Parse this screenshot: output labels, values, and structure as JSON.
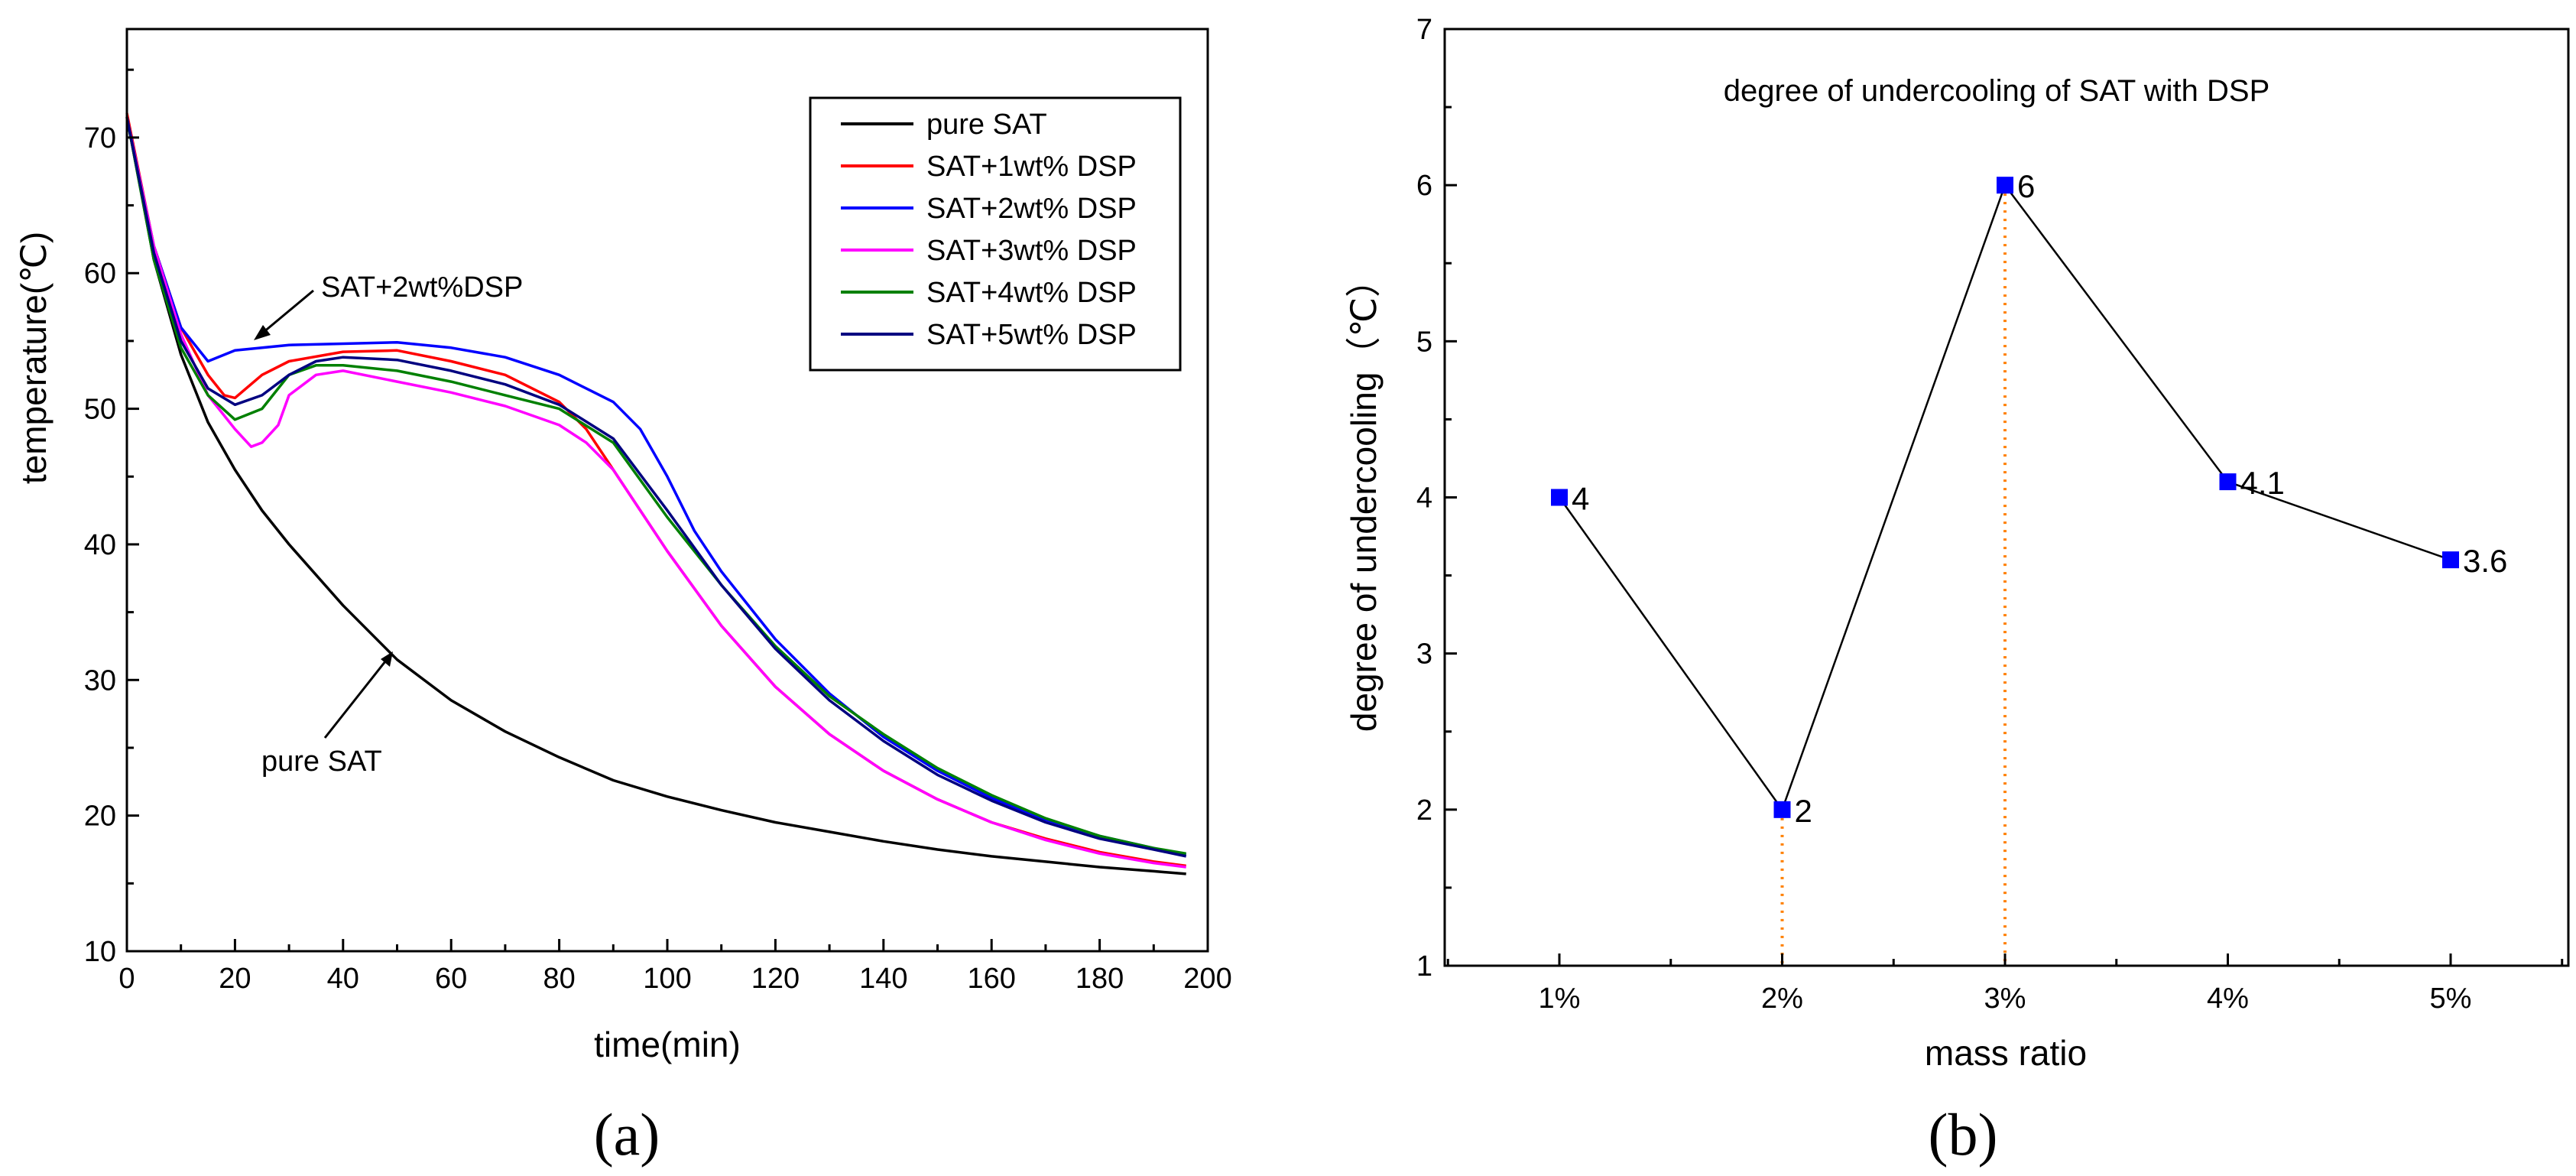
{
  "chart_data": [
    {
      "type": "line",
      "caption": "(a)",
      "xlabel": "time(min)",
      "ylabel": "temperature(℃)",
      "xlim": [
        0,
        200
      ],
      "ylim": [
        10,
        78
      ],
      "xticks": [
        0,
        20,
        40,
        60,
        80,
        100,
        120,
        140,
        160,
        180,
        200
      ],
      "yticks": [
        10,
        20,
        30,
        40,
        50,
        60,
        70
      ],
      "legend_position": "top-right",
      "series": [
        {
          "name": "pure SAT",
          "color": "#000000",
          "x": [
            0,
            5,
            10,
            15,
            20,
            25,
            30,
            40,
            50,
            60,
            70,
            80,
            90,
            100,
            110,
            120,
            130,
            140,
            150,
            160,
            170,
            180,
            190,
            196
          ],
          "y": [
            71.5,
            61,
            54,
            49,
            45.5,
            42.5,
            40,
            35.5,
            31.5,
            28.5,
            26.2,
            24.3,
            22.6,
            21.4,
            20.4,
            19.5,
            18.8,
            18.1,
            17.5,
            17,
            16.6,
            16.2,
            15.9,
            15.7
          ]
        },
        {
          "name": "SAT+1wt% DSP",
          "color": "#ff0000",
          "x": [
            0,
            5,
            10,
            15,
            18,
            20,
            25,
            30,
            40,
            50,
            60,
            70,
            80,
            85,
            90,
            100,
            110,
            120,
            130,
            140,
            150,
            160,
            170,
            180,
            190,
            196
          ],
          "y": [
            71.8,
            62,
            56,
            52.5,
            51,
            50.8,
            52.5,
            53.5,
            54.2,
            54.3,
            53.5,
            52.5,
            50.5,
            48.5,
            45.5,
            39.5,
            34,
            29.5,
            26,
            23.3,
            21.2,
            19.5,
            18.3,
            17.3,
            16.6,
            16.3
          ]
        },
        {
          "name": "SAT+2wt% DSP",
          "color": "#0000ff",
          "x": [
            0,
            5,
            10,
            15,
            20,
            25,
            30,
            40,
            50,
            60,
            70,
            80,
            90,
            95,
            100,
            105,
            110,
            120,
            130,
            140,
            150,
            160,
            170,
            180,
            190,
            196
          ],
          "y": [
            71.5,
            62,
            56,
            53.5,
            54.3,
            54.5,
            54.7,
            54.8,
            54.9,
            54.5,
            53.8,
            52.5,
            50.5,
            48.5,
            45,
            41,
            38,
            33,
            29,
            25.8,
            23.3,
            21.3,
            19.7,
            18.5,
            17.6,
            17.1
          ]
        },
        {
          "name": "SAT+3wt% DSP",
          "color": "#ff00ff",
          "x": [
            0,
            5,
            10,
            15,
            20,
            23,
            25,
            28,
            30,
            35,
            40,
            50,
            60,
            70,
            80,
            85,
            90,
            100,
            110,
            120,
            130,
            140,
            150,
            160,
            170,
            180,
            190,
            196
          ],
          "y": [
            71.5,
            62,
            55.5,
            51,
            48.5,
            47.2,
            47.5,
            48.8,
            51,
            52.5,
            52.8,
            52,
            51.2,
            50.2,
            48.8,
            47.5,
            45.5,
            39.5,
            34,
            29.5,
            26,
            23.3,
            21.2,
            19.5,
            18.2,
            17.2,
            16.5,
            16.2
          ]
        },
        {
          "name": "SAT+4wt% DSP",
          "color": "#008000",
          "x": [
            0,
            5,
            10,
            15,
            20,
            25,
            30,
            35,
            40,
            50,
            60,
            70,
            80,
            90,
            100,
            110,
            120,
            130,
            140,
            150,
            160,
            170,
            180,
            190,
            196
          ],
          "y": [
            71.5,
            61,
            54.5,
            51,
            49.2,
            50,
            52.5,
            53.2,
            53.2,
            52.8,
            52,
            51,
            50,
            47.5,
            42,
            37,
            32.5,
            28.8,
            26,
            23.5,
            21.5,
            19.8,
            18.5,
            17.6,
            17.2
          ]
        },
        {
          "name": "SAT+5wt% DSP",
          "color": "#000080",
          "x": [
            0,
            5,
            10,
            15,
            20,
            25,
            30,
            35,
            40,
            50,
            60,
            70,
            80,
            90,
            100,
            110,
            120,
            130,
            140,
            150,
            160,
            170,
            180,
            190,
            196
          ],
          "y": [
            71.5,
            61.5,
            55,
            51.5,
            50.3,
            51,
            52.5,
            53.5,
            53.8,
            53.6,
            52.8,
            51.8,
            50.3,
            47.8,
            42.5,
            37,
            32.3,
            28.5,
            25.5,
            23,
            21.1,
            19.5,
            18.3,
            17.5,
            17
          ]
        }
      ],
      "annotations": [
        {
          "text": "SAT+2wt%DSP",
          "points_to": [
            24,
            54.5
          ]
        },
        {
          "text": "pure SAT",
          "points_to": [
            50,
            32.5
          ]
        }
      ]
    },
    {
      "type": "line",
      "caption": "(b)",
      "title": "degree of undercooling of SAT with DSP",
      "xlabel": "mass ratio",
      "ylabel": "degree of undercooling（℃）",
      "categories": [
        "1%",
        "2%",
        "3%",
        "4%",
        "5%"
      ],
      "values": [
        4,
        2,
        6,
        4.1,
        3.6
      ],
      "data_labels": [
        "4",
        "2",
        "6",
        "4.1",
        "3.6"
      ],
      "ylim": [
        1,
        7
      ],
      "yticks": [
        1,
        2,
        3,
        4,
        5,
        6,
        7
      ],
      "marker_color": "#0000ff",
      "line_color": "#000000",
      "drop_line_color": "#ff8000",
      "drop_lines_at": [
        "2%",
        "3%"
      ]
    }
  ]
}
